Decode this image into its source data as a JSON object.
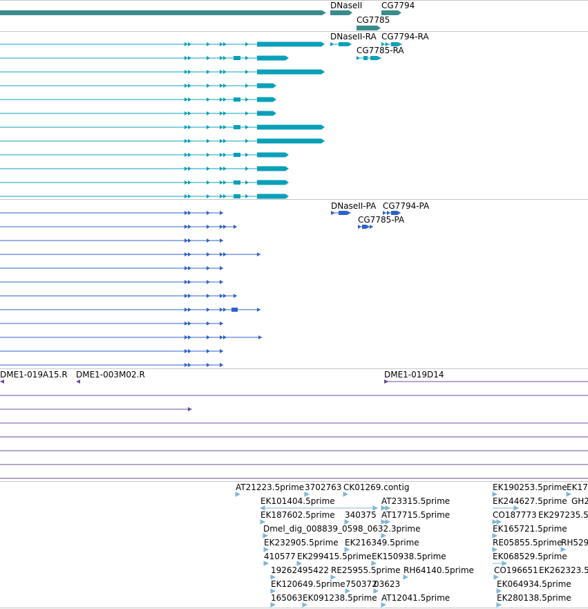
{
  "colors": {
    "gene": "#3a8c8c",
    "transcript": "#0aa0b8",
    "protein": "#2e62c8",
    "clone": "#6a4c9c",
    "est": "#7fb6d8",
    "divider": "#c4c4c4",
    "text": "#000000"
  },
  "tracks": {
    "gene": {
      "labels": [
        "DNaseII",
        "CG7794",
        "CG7785"
      ]
    },
    "transcript": {
      "labels": [
        "DNaseII-RA",
        "CG7794-RA",
        "CG7785-RA"
      ]
    },
    "protein": {
      "labels": [
        "DNaseII-PA",
        "CG7794-PA",
        "CG7785-PA"
      ]
    },
    "clone": {
      "labels": [
        "DME1-019A15.R",
        "DME1-003M02.R",
        "DME1-019D14"
      ]
    },
    "est": {
      "labels": [
        "AT21223.5prime",
        "3702763",
        "CK01269.contig",
        "EK101404.5prime",
        "AT23315.5prime",
        "EK187602.5prime",
        "340375",
        "AT17715.5prime",
        "Dmel_dig_008839_0598_0632.3prime",
        "EK232905.5prime",
        "EK216349.5prime",
        "410577",
        "EK299415.5prime",
        "EK150938.5prime",
        "19262495422",
        "RE25955.5prime",
        "RH64140.5prime",
        "EK120649.5prime",
        "750372",
        "03623",
        "165063",
        "EK091238.5prime",
        "AT12041.5prime",
        "EK190253.5prime",
        "EK17",
        "EK244627.5prime",
        "GH2",
        "CO187773",
        "EK297235.5",
        "EK165721.5prime",
        "RE05855.5prime",
        "RH529",
        "EK068529.5prime",
        "CO196651",
        "EK262323.5",
        "EK064934.5prime",
        "EK280138.5prime"
      ]
    }
  }
}
